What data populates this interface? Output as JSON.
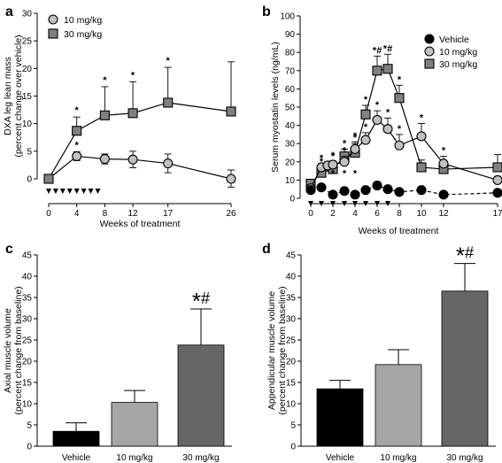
{
  "colors": {
    "vehicle": "#000000",
    "dose10": "#c0c0c0",
    "dose30": "#808080",
    "bar_vehicle": "#000000",
    "bar_10": "#a6a6a6",
    "bar_30": "#666666"
  },
  "chart_data": [
    {
      "panel": "a",
      "type": "line",
      "xlabel": "Weeks of treatment",
      "ylabel": [
        "DXA leg lean mass",
        "(percent change over vehicle)"
      ],
      "xticks": [
        0,
        4,
        8,
        12,
        17,
        26
      ],
      "yticks": [
        0,
        5,
        10,
        15,
        20,
        25,
        30
      ],
      "xlim": [
        0,
        26
      ],
      "ylim": [
        0,
        30
      ],
      "dosing_weeks": [
        0,
        1,
        2,
        3,
        4,
        5,
        6,
        7
      ],
      "series": [
        {
          "name": "10 mg/kg",
          "marker": "circle",
          "color": "#c0c0c0",
          "x": [
            0,
            4,
            8,
            12,
            17,
            26
          ],
          "y": [
            0,
            4.1,
            3.6,
            3.5,
            2.8,
            0
          ],
          "err": [
            0,
            0.8,
            0.9,
            1.5,
            1.7,
            1.6
          ],
          "stars": [
            "",
            "*",
            "",
            "",
            "",
            ""
          ]
        },
        {
          "name": "30 mg/kg",
          "marker": "square",
          "color": "#808080",
          "x": [
            0,
            4,
            8,
            12,
            17,
            26
          ],
          "y": [
            0,
            8.7,
            11.5,
            11.9,
            13.8,
            12.2
          ],
          "err": [
            0,
            2.5,
            5.2,
            5.7,
            6.4,
            9.0
          ],
          "stars": [
            "",
            "*",
            "*",
            "*",
            "*",
            ""
          ]
        }
      ]
    },
    {
      "panel": "b",
      "type": "line",
      "xlabel": "Weeks of treatment",
      "ylabel": [
        "Serum myostatin levels (ng/mL)"
      ],
      "xticks": [
        0,
        2,
        4,
        6,
        8,
        10,
        12,
        17
      ],
      "yticks": [
        0,
        10,
        20,
        30,
        40,
        50,
        60,
        70,
        80,
        90,
        100
      ],
      "xlim": [
        0,
        17
      ],
      "ylim": [
        0,
        100
      ],
      "dosing_weeks": [
        0,
        1,
        2,
        3,
        4,
        5,
        6,
        7
      ],
      "series": [
        {
          "name": "Vehicle",
          "marker": "circle",
          "color": "#000000",
          "x": [
            0,
            1,
            2,
            3,
            4,
            5,
            6,
            7,
            8,
            10,
            12,
            17
          ],
          "y": [
            4.5,
            6,
            2,
            4,
            2,
            4.5,
            7,
            5,
            3.5,
            4.5,
            2,
            3
          ],
          "err": [
            0,
            0,
            0,
            0,
            0,
            0,
            2,
            0,
            0,
            0,
            0,
            0
          ],
          "dashed_from": 10,
          "stars": [
            "",
            "",
            "",
            "",
            "",
            "",
            "",
            "",
            "",
            "",
            "",
            ""
          ]
        },
        {
          "name": "10 mg/kg",
          "marker": "circle",
          "color": "#c0c0c0",
          "x": [
            0,
            1,
            1.5,
            2,
            3,
            4,
            5,
            6,
            7,
            8,
            10,
            12,
            17
          ],
          "y": [
            5.5,
            17,
            18,
            18.5,
            20,
            27,
            32,
            43,
            38,
            29,
            34,
            19,
            10
          ],
          "err": [
            2,
            2,
            2,
            2,
            3,
            4,
            4,
            5,
            6,
            6,
            7,
            4,
            2
          ],
          "stars": [
            "",
            "*",
            "",
            "*",
            "*",
            "*",
            "*",
            "*",
            "*",
            "*",
            "*",
            "*",
            ""
          ]
        },
        {
          "name": "30 mg/kg",
          "marker": "square",
          "color": "#808080",
          "x": [
            0,
            1,
            2,
            3,
            4,
            5,
            6,
            7,
            8,
            10,
            12,
            17
          ],
          "y": [
            8,
            14,
            16,
            23,
            25,
            46,
            70,
            71,
            55,
            17,
            16,
            17
          ],
          "err": [
            2,
            3,
            4,
            4,
            5,
            5,
            8,
            8,
            7,
            4,
            4,
            7
          ],
          "stars": [
            "",
            "*",
            "*",
            "*",
            "*",
            "*",
            "*#",
            "*#",
            "*",
            "",
            "",
            ""
          ]
        }
      ],
      "below_stars": [
        {
          "x": 2,
          "label": "*"
        },
        {
          "x": 3,
          "label": "*"
        },
        {
          "x": 4,
          "label": "*"
        }
      ]
    },
    {
      "panel": "c",
      "type": "bar",
      "ylabel": [
        "Axial muscle volume",
        "(percent change from baseline)"
      ],
      "categories": [
        "Vehicle",
        "10 mg/kg",
        "30 mg/kg"
      ],
      "values": [
        3.5,
        10.3,
        23.8
      ],
      "err": [
        2.0,
        2.8,
        8.5
      ],
      "yticks": [
        0,
        5,
        10,
        15,
        20,
        25,
        30,
        35,
        40,
        45
      ],
      "ylim": [
        0,
        45
      ],
      "annotation": {
        "category": "30 mg/kg",
        "label": "*#"
      }
    },
    {
      "panel": "d",
      "type": "bar",
      "ylabel": [
        "Appendicular muscle volume",
        "(percent change from baseline)"
      ],
      "categories": [
        "Vehicle",
        "10 mg/kg",
        "30 mg/kg"
      ],
      "values": [
        13.5,
        19.2,
        36.5
      ],
      "err": [
        2.0,
        3.5,
        6.5
      ],
      "yticks": [
        0,
        5,
        10,
        15,
        20,
        25,
        30,
        35,
        40,
        45
      ],
      "ylim": [
        0,
        45
      ],
      "annotation": {
        "category": "30 mg/kg",
        "label": "*#"
      }
    }
  ],
  "panel_labels": [
    "a",
    "b",
    "c",
    "d"
  ]
}
